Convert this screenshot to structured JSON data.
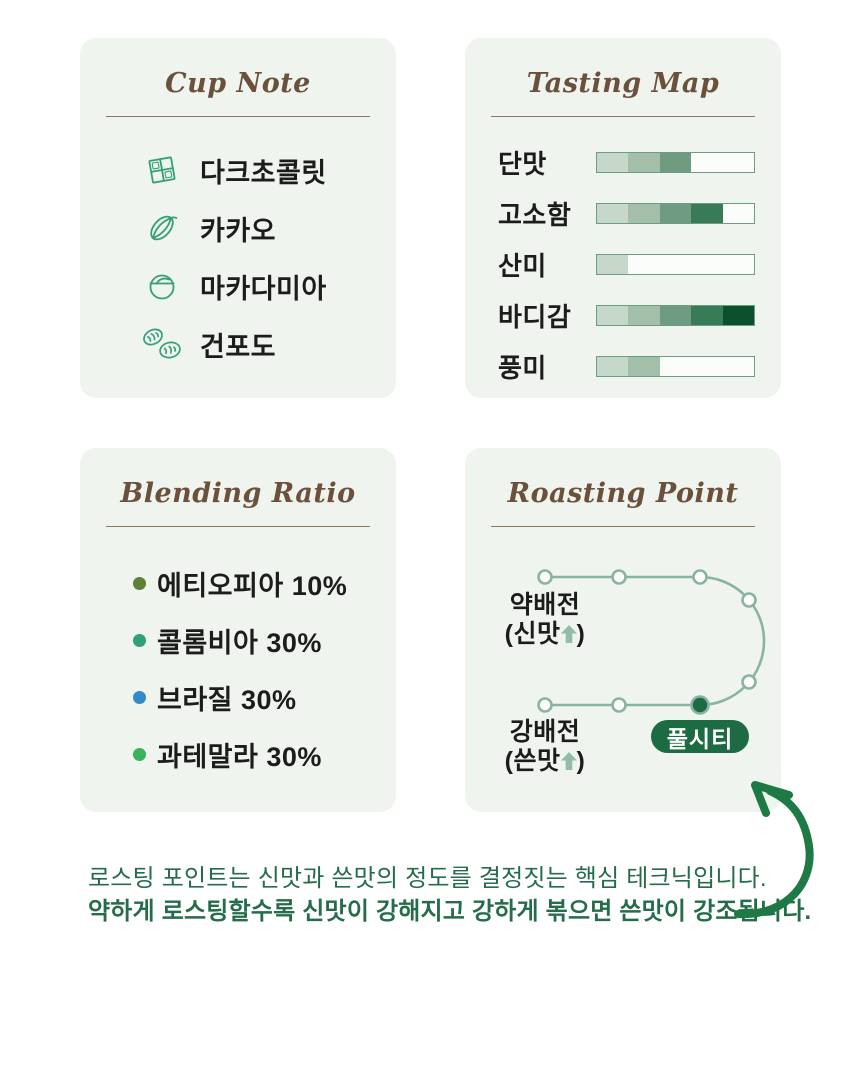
{
  "cards": {
    "cup_note": {
      "title": "Cup Note",
      "items": [
        {
          "icon": "chocolate-icon",
          "label": "다크초콜릿"
        },
        {
          "icon": "cacao-icon",
          "label": "카카오"
        },
        {
          "icon": "macadamia-icon",
          "label": "마카다미아"
        },
        {
          "icon": "raisin-icon",
          "label": "건포도"
        }
      ]
    },
    "tasting_map": {
      "title": "Tasting Map",
      "scale_max": 5,
      "rows": [
        {
          "label": "단맛",
          "value": 3
        },
        {
          "label": "고소함",
          "value": 4
        },
        {
          "label": "산미",
          "value": 1
        },
        {
          "label": "바디감",
          "value": 5
        },
        {
          "label": "풍미",
          "value": 2
        }
      ],
      "segment_colors": [
        "#c6d8ca",
        "#a3bfaa",
        "#6e9b81",
        "#387c57",
        "#0b4f2c"
      ]
    },
    "blending_ratio": {
      "title": "Blending Ratio",
      "items": [
        {
          "label": "에티오피아 10%",
          "bullet_color": "#5d8039"
        },
        {
          "label": "콜롬비아 30%",
          "bullet_color": "#2fa077"
        },
        {
          "label": "브라질 30%",
          "bullet_color": "#3489c9"
        },
        {
          "label": "과테말라 30%",
          "bullet_color": "#39b35b"
        }
      ]
    },
    "roasting_point": {
      "title": "Roasting Point",
      "light_roast": {
        "name": "약배전",
        "taste_prefix": "(신맛",
        "suffix": ")"
      },
      "dark_roast": {
        "name": "강배전",
        "taste_prefix": "(쓴맛",
        "suffix": ")"
      },
      "selected_point_badge": "풀시티"
    }
  },
  "footer": {
    "line1": "로스팅 포인트는 신맛과 쓴맛의 정도를 결정짓는 핵심 테크닉입니다.",
    "line2": "약하게 로스팅할수록 신맛이 강해지고 강하게 볶으면 쓴맛이 강조됩니다."
  },
  "colors": {
    "card_background": "#eff4ee",
    "title_brown": "#6b513c",
    "divider_brown": "#8d7663",
    "icon_green": "#35a173",
    "bar_border_green": "#6d9c84",
    "path_sage": "#8ab4a2",
    "arrow_sage": "#93bca9",
    "badge_dark_green": "#1c6b42",
    "footer_green": "#256c4a",
    "curve_arrow_green": "#1e7a45"
  }
}
